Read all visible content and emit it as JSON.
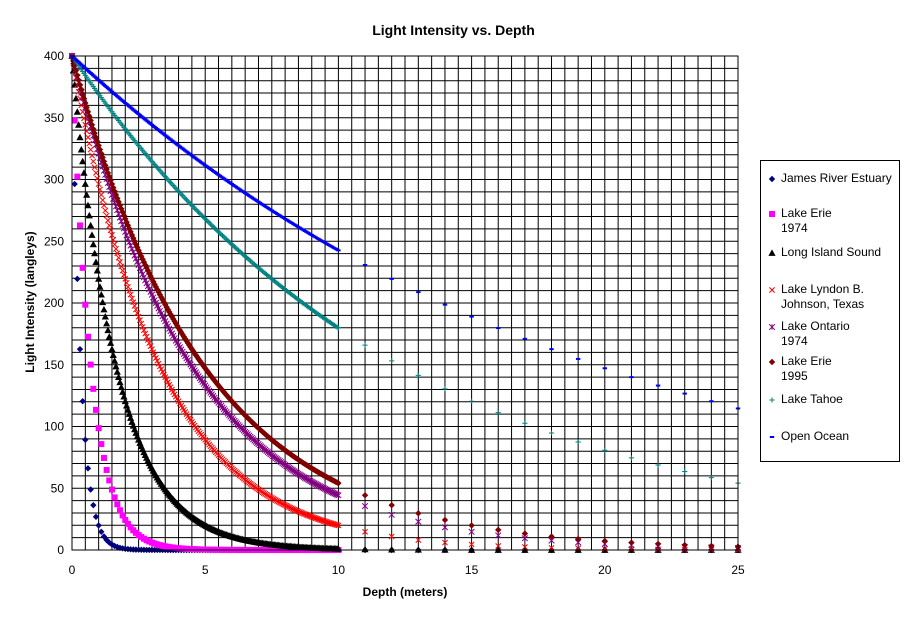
{
  "chart_data": {
    "type": "scatter",
    "title": "Light Intensity vs. Depth",
    "xlabel": "Depth (meters)",
    "ylabel": "Light Intensity (langleys)",
    "xlim": [
      0,
      25
    ],
    "ylim": [
      0,
      400
    ],
    "x_ticks": [
      "0",
      "5",
      "10",
      "15",
      "20",
      "25"
    ],
    "y_ticks": [
      "0",
      "50",
      "100",
      "150",
      "200",
      "250",
      "300",
      "350",
      "400"
    ],
    "grid": true,
    "legend_position": "right",
    "dense_step": 0.1,
    "dense_max": 10,
    "sparse_step": 1,
    "sparse_max": 25,
    "series": [
      {
        "name": "James River Estuary",
        "marker": "diamond",
        "color": "#000080",
        "I0": 400,
        "k": 3.0,
        "dense_step": 0.1,
        "dense_max": 10,
        "sparse": true
      },
      {
        "name": "Lake Erie\n1974",
        "marker": "square",
        "color": "#ff00ff",
        "I0": 400,
        "k": 1.4,
        "dense_step": 0.1,
        "dense_max": 10,
        "sparse": false
      },
      {
        "name": "Long Island Sound",
        "marker": "triangle",
        "color": "#000000",
        "I0": 400,
        "k": 0.6,
        "dense_step": 0.05,
        "dense_max": 10,
        "sparse": true
      },
      {
        "name": "Lake Lyndon B.\nJohnson, Texas",
        "marker": "x",
        "color": "#ff0000",
        "I0": 400,
        "k": 0.3,
        "dense_step": 0.05,
        "dense_max": 10,
        "sparse": true
      },
      {
        "name": "Lake Ontario\n1974",
        "marker": "star",
        "color": "#800080",
        "I0": 400,
        "k": 0.22,
        "dense_step": 0.05,
        "dense_max": 10,
        "sparse": true
      },
      {
        "name": "Lake Erie\n1995",
        "marker": "diamond",
        "color": "#800000",
        "I0": 400,
        "k": 0.2,
        "dense_step": 0.05,
        "dense_max": 10,
        "sparse": true
      },
      {
        "name": "Lake Tahoe",
        "marker": "plus",
        "color": "#008080",
        "I0": 400,
        "k": 0.08,
        "dense_step": 0.05,
        "dense_max": 10,
        "sparse": true
      },
      {
        "name": "Open Ocean",
        "marker": "dash",
        "color": "#0000ff",
        "I0": 400,
        "k": 0.05,
        "dense_step": 0.05,
        "dense_max": 10,
        "sparse": true
      }
    ]
  }
}
